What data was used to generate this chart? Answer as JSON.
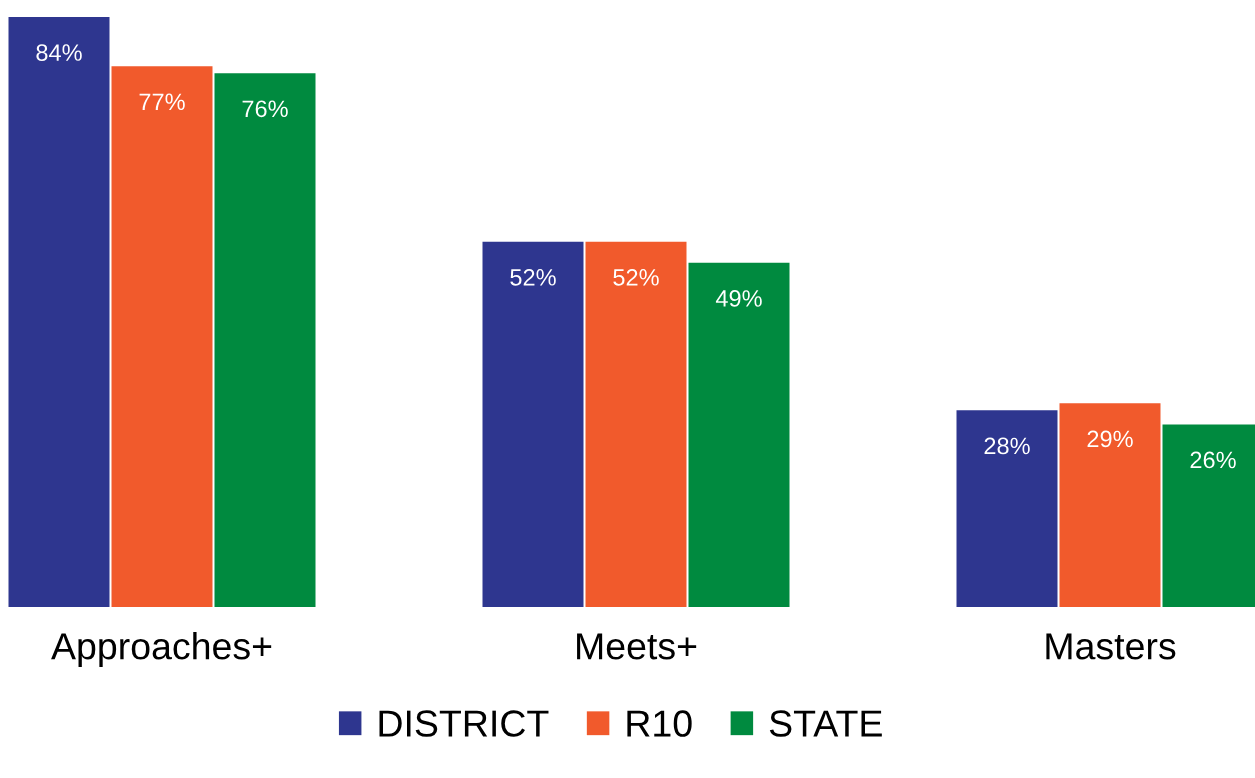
{
  "chart_data": {
    "type": "bar",
    "categories": [
      "Approaches+",
      "Meets+",
      "Masters"
    ],
    "series": [
      {
        "name": "DISTRICT",
        "color": "#2e368f",
        "values": [
          84,
          52,
          28
        ],
        "value_labels": [
          "84%",
          "52%",
          "28%"
        ]
      },
      {
        "name": "R10",
        "color": "#f15a2c",
        "values": [
          77,
          52,
          29
        ],
        "value_labels": [
          "77%",
          "52%",
          "29%"
        ]
      },
      {
        "name": "STATE",
        "color": "#008a3f",
        "values": [
          76,
          49,
          26
        ],
        "value_labels": [
          "76%",
          "49%",
          "26%"
        ]
      }
    ],
    "legend": "bottom",
    "grid": false,
    "tick_labels": "x"
  }
}
